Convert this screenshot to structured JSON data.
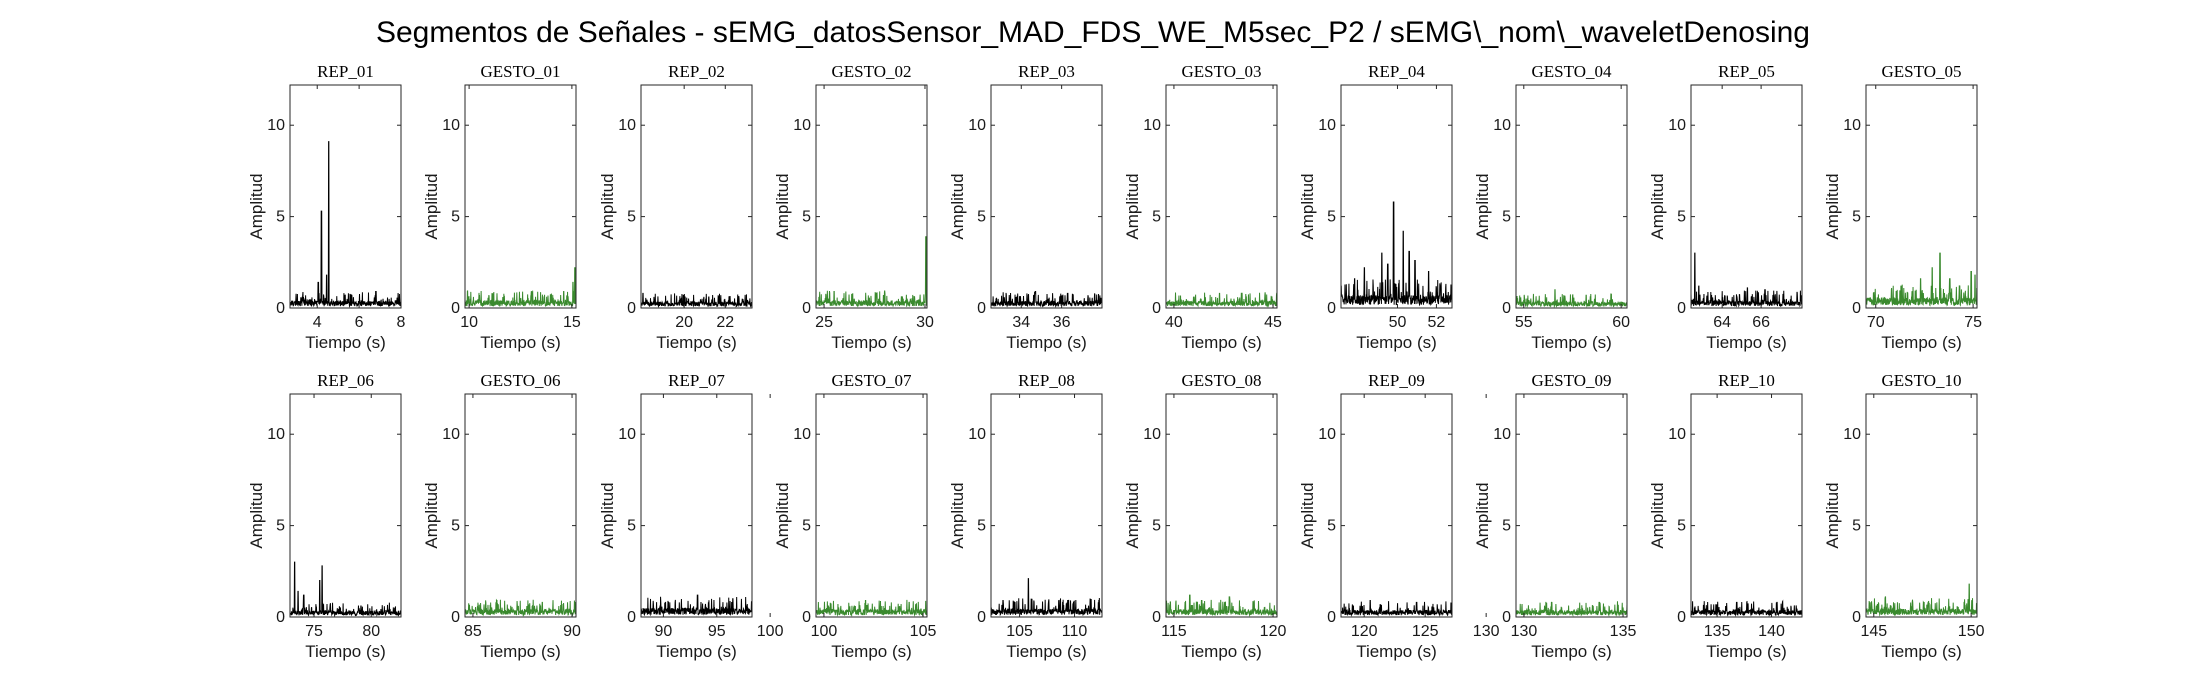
{
  "figure": {
    "title": "Segmentos de Señales - sEMG_datosSensor_MAD_FDS_WE_M5sec_P2 / sEMG\\_nom\\_waveletDenosing"
  },
  "colors": {
    "rep": "#000000",
    "gesto": "#3a8a2e",
    "axes": "#262626"
  },
  "chart_data": [
    {
      "type": "line",
      "title": "REP_01",
      "xlabel": "Tiempo (s)",
      "ylabel": "Amplitud",
      "xlim": [
        2.7,
        8
      ],
      "ylim": [
        0,
        12.2
      ],
      "xticks": [
        4,
        6,
        8
      ],
      "yticks": [
        0,
        5,
        10
      ],
      "color": "#000000",
      "segment": {
        "noise": 0.55,
        "peaks": [
          [
            4.2,
            5.3
          ],
          [
            4.55,
            9.1
          ],
          [
            4.05,
            1.4
          ],
          [
            4.45,
            1.8
          ],
          [
            6.8,
            0.9
          ]
        ]
      }
    },
    {
      "type": "line",
      "title": "GESTO_01",
      "xlabel": "Tiempo (s)",
      "ylabel": "Amplitud",
      "xlim": [
        9.8,
        15.2
      ],
      "ylim": [
        0,
        12.2
      ],
      "xticks": [
        10,
        15
      ],
      "yticks": [
        0,
        5,
        10
      ],
      "color": "#3a8a2e",
      "segment": {
        "noise": 0.6,
        "peaks": [
          [
            15.15,
            2.2
          ],
          [
            15.05,
            1.4
          ],
          [
            14.6,
            0.9
          ]
        ]
      }
    },
    {
      "type": "line",
      "title": "REP_02",
      "xlabel": "Tiempo (s)",
      "ylabel": "Amplitud",
      "xlim": [
        17.9,
        23.3
      ],
      "ylim": [
        0,
        12.2
      ],
      "xticks": [
        20,
        22
      ],
      "yticks": [
        0,
        5,
        10
      ],
      "color": "#000000",
      "segment": {
        "noise": 0.5,
        "peaks": [
          [
            18,
            0.8
          ],
          [
            21.2,
            0.6
          ]
        ]
      }
    },
    {
      "type": "line",
      "title": "GESTO_02",
      "xlabel": "Tiempo (s)",
      "ylabel": "Amplitud",
      "xlim": [
        24.6,
        30.1
      ],
      "ylim": [
        0,
        12.2
      ],
      "xticks": [
        25,
        30
      ],
      "yticks": [
        0,
        5,
        10
      ],
      "color": "#3a8a2e",
      "segment": {
        "noise": 0.6,
        "peaks": [
          [
            30.05,
            3.9
          ],
          [
            25.5,
            0.9
          ],
          [
            27.6,
            0.8
          ]
        ]
      }
    },
    {
      "type": "line",
      "title": "REP_03",
      "xlabel": "Tiempo (s)",
      "ylabel": "Amplitud",
      "xlim": [
        32.5,
        38
      ],
      "ylim": [
        0,
        12.2
      ],
      "xticks": [
        34,
        36
      ],
      "yticks": [
        0,
        5,
        10
      ],
      "color": "#000000",
      "segment": {
        "noise": 0.55,
        "peaks": [
          [
            34.7,
            0.9
          ],
          [
            36.3,
            0.8
          ]
        ]
      }
    },
    {
      "type": "line",
      "title": "GESTO_03",
      "xlabel": "Tiempo (s)",
      "ylabel": "Amplitud",
      "xlim": [
        39.6,
        45.2
      ],
      "ylim": [
        0,
        12.2
      ],
      "xticks": [
        40,
        45
      ],
      "yticks": [
        0,
        5,
        10
      ],
      "color": "#3a8a2e",
      "segment": {
        "noise": 0.55,
        "peaks": [
          [
            42.3,
            0.8
          ],
          [
            44.6,
            0.7
          ]
        ]
      }
    },
    {
      "type": "line",
      "title": "REP_04",
      "xlabel": "Tiempo (s)",
      "ylabel": "Amplitud",
      "xlim": [
        47.1,
        52.8
      ],
      "ylim": [
        0,
        12.2
      ],
      "xticks": [
        50,
        52
      ],
      "yticks": [
        0,
        5,
        10
      ],
      "color": "#000000",
      "segment": {
        "noise": 1.0,
        "peaks": [
          [
            49.8,
            5.8
          ],
          [
            50.3,
            4.2
          ],
          [
            49.2,
            3.0
          ],
          [
            48.3,
            2.2
          ],
          [
            50.9,
            2.6
          ],
          [
            51.6,
            2.0
          ],
          [
            47.8,
            1.6
          ],
          [
            49.5,
            2.4
          ],
          [
            50.6,
            3.1
          ],
          [
            52.2,
            1.2
          ]
        ]
      }
    },
    {
      "type": "line",
      "title": "GESTO_04",
      "xlabel": "Tiempo (s)",
      "ylabel": "Amplitud",
      "xlim": [
        54.6,
        60.3
      ],
      "ylim": [
        0,
        12.2
      ],
      "xticks": [
        55,
        60
      ],
      "yticks": [
        0,
        5,
        10
      ],
      "color": "#3a8a2e",
      "segment": {
        "noise": 0.5,
        "peaks": [
          [
            56.6,
            1.0
          ],
          [
            58.2,
            0.7
          ]
        ]
      }
    },
    {
      "type": "line",
      "title": "REP_05",
      "xlabel": "Tiempo (s)",
      "ylabel": "Amplitud",
      "xlim": [
        62.4,
        68.1
      ],
      "ylim": [
        0,
        12.2
      ],
      "xticks": [
        64,
        66
      ],
      "yticks": [
        0,
        5,
        10
      ],
      "color": "#000000",
      "segment": {
        "noise": 0.6,
        "peaks": [
          [
            62.6,
            3.0
          ],
          [
            62.8,
            1.2
          ],
          [
            65.3,
            1.1
          ],
          [
            66.2,
            1.0
          ]
        ]
      }
    },
    {
      "type": "line",
      "title": "GESTO_05",
      "xlabel": "Tiempo (s)",
      "ylabel": "Amplitud",
      "xlim": [
        69.5,
        75.2
      ],
      "ylim": [
        0,
        12.2
      ],
      "xticks": [
        70,
        75
      ],
      "yticks": [
        0,
        5,
        10
      ],
      "color": "#3a8a2e",
      "segment": {
        "noise": 0.8,
        "peaks": [
          [
            73.3,
            3.0
          ],
          [
            72.9,
            2.2
          ],
          [
            72.3,
            1.6
          ],
          [
            74.9,
            2.0
          ],
          [
            75.1,
            1.8
          ],
          [
            71.3,
            1.2
          ],
          [
            73.8,
            1.6
          ]
        ]
      }
    },
    {
      "type": "line",
      "title": "REP_06",
      "xlabel": "Tiempo (s)",
      "ylabel": "Amplitud",
      "xlim": [
        72.9,
        82.6
      ],
      "ylim": [
        0,
        12.2
      ],
      "xticks": [
        75,
        80
      ],
      "yticks": [
        0,
        5,
        10
      ],
      "color": "#000000",
      "segment": {
        "noise": 0.5,
        "peaks": [
          [
            73.3,
            3.0
          ],
          [
            75.7,
            2.8
          ],
          [
            75.5,
            2.0
          ],
          [
            73.6,
            1.4
          ],
          [
            74.1,
            1.2
          ],
          [
            79.1,
            0.6
          ]
        ]
      }
    },
    {
      "type": "line",
      "title": "GESTO_06",
      "xlabel": "Tiempo (s)",
      "ylabel": "Amplitud",
      "xlim": [
        84.6,
        90.2
      ],
      "ylim": [
        0,
        12.2
      ],
      "xticks": [
        85,
        90
      ],
      "yticks": [
        0,
        5,
        10
      ],
      "color": "#3a8a2e",
      "segment": {
        "noise": 0.6,
        "peaks": [
          [
            86.2,
            0.9
          ],
          [
            88.5,
            0.8
          ]
        ]
      }
    },
    {
      "type": "line",
      "title": "REP_07",
      "xlabel": "Tiempo (s)",
      "ylabel": "Amplitud",
      "xlim": [
        87.9,
        98.3
      ],
      "ylim": [
        0,
        12.2
      ],
      "xticks": [
        90,
        95,
        100
      ],
      "yticks": [
        0,
        5,
        10
      ],
      "color": "#000000",
      "segment": {
        "noise": 0.7,
        "peaks": [
          [
            93.2,
            1.2
          ],
          [
            96.5,
            1.0
          ],
          [
            91.1,
            0.8
          ]
        ]
      }
    },
    {
      "type": "line",
      "title": "GESTO_07",
      "xlabel": "Tiempo (s)",
      "ylabel": "Amplitud",
      "xlim": [
        99.6,
        105.2
      ],
      "ylim": [
        0,
        12.2
      ],
      "xticks": [
        100,
        105
      ],
      "yticks": [
        0,
        5,
        10
      ],
      "color": "#3a8a2e",
      "segment": {
        "noise": 0.6,
        "peaks": [
          [
            102.1,
            0.9
          ],
          [
            104.3,
            0.8
          ]
        ]
      }
    },
    {
      "type": "line",
      "title": "REP_08",
      "xlabel": "Tiempo (s)",
      "ylabel": "Amplitud",
      "xlim": [
        102.4,
        112.5
      ],
      "ylim": [
        0,
        12.2
      ],
      "xticks": [
        105,
        110
      ],
      "yticks": [
        0,
        5,
        10
      ],
      "color": "#000000",
      "segment": {
        "noise": 0.65,
        "peaks": [
          [
            105.8,
            2.1
          ],
          [
            103.5,
            0.9
          ],
          [
            109.4,
            0.9
          ]
        ]
      }
    },
    {
      "type": "line",
      "title": "GESTO_08",
      "xlabel": "Tiempo (s)",
      "ylabel": "Amplitud",
      "xlim": [
        114.6,
        120.2
      ],
      "ylim": [
        0,
        12.2
      ],
      "xticks": [
        115,
        120
      ],
      "yticks": [
        0,
        5,
        10
      ],
      "color": "#3a8a2e",
      "segment": {
        "noise": 0.6,
        "peaks": [
          [
            115.8,
            1.2
          ],
          [
            117.8,
            1.1
          ],
          [
            116.4,
            0.9
          ]
        ]
      }
    },
    {
      "type": "line",
      "title": "REP_09",
      "xlabel": "Tiempo (s)",
      "ylabel": "Amplitud",
      "xlim": [
        118.1,
        127.2
      ],
      "ylim": [
        0,
        12.2
      ],
      "xticks": [
        120,
        125,
        130
      ],
      "yticks": [
        0,
        5,
        10
      ],
      "color": "#000000",
      "segment": {
        "noise": 0.55,
        "peaks": [
          [
            120.5,
            0.9
          ],
          [
            124.3,
            0.8
          ]
        ]
      }
    },
    {
      "type": "line",
      "title": "GESTO_09",
      "xlabel": "Tiempo (s)",
      "ylabel": "Amplitud",
      "xlim": [
        129.6,
        135.2
      ],
      "ylim": [
        0,
        12.2
      ],
      "xticks": [
        130,
        135
      ],
      "yticks": [
        0,
        5,
        10
      ],
      "color": "#3a8a2e",
      "segment": {
        "noise": 0.55,
        "peaks": [
          [
            131.4,
            0.8
          ],
          [
            133.8,
            0.8
          ]
        ]
      }
    },
    {
      "type": "line",
      "title": "REP_10",
      "xlabel": "Tiempo (s)",
      "ylabel": "Amplitud",
      "xlim": [
        132.6,
        142.8
      ],
      "ylim": [
        0,
        12.2
      ],
      "xticks": [
        135,
        140
      ],
      "yticks": [
        0,
        5,
        10
      ],
      "color": "#000000",
      "segment": {
        "noise": 0.55,
        "peaks": [
          [
            136.8,
            0.8
          ],
          [
            140.5,
            0.8
          ]
        ]
      }
    },
    {
      "type": "line",
      "title": "GESTO_10",
      "xlabel": "Tiempo (s)",
      "ylabel": "Amplitud",
      "xlim": [
        144.6,
        150.3
      ],
      "ylim": [
        0,
        12.2
      ],
      "xticks": [
        145,
        150
      ],
      "yticks": [
        0,
        5,
        10
      ],
      "color": "#3a8a2e",
      "segment": {
        "noise": 0.65,
        "peaks": [
          [
            149.9,
            1.8
          ],
          [
            145.6,
            1.1
          ],
          [
            147.8,
            0.8
          ]
        ]
      }
    }
  ]
}
